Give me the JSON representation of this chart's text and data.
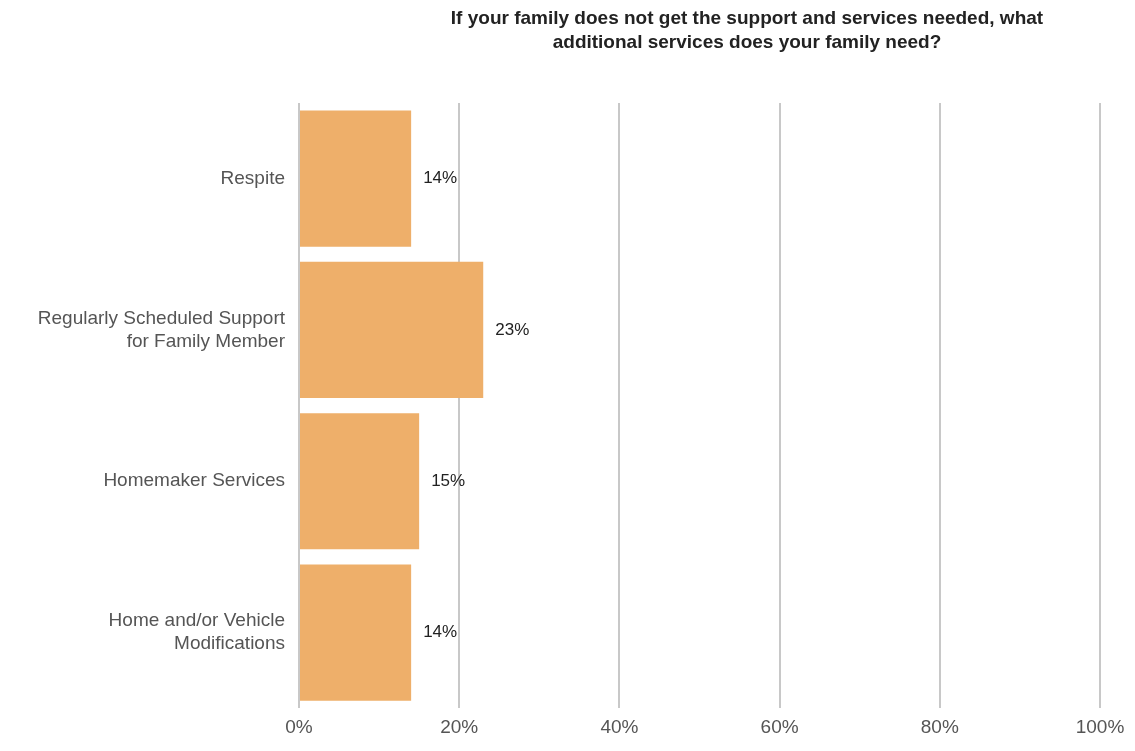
{
  "chart_data": {
    "type": "bar",
    "orientation": "horizontal",
    "title": "If your family does not get the support and services needed, what additional services does your family need?",
    "categories": [
      "Respite",
      "Regularly Scheduled Support for Family Member",
      "Homemaker Services",
      "Home and/or Vehicle Modifications"
    ],
    "values": [
      14,
      23,
      15,
      14
    ],
    "color": "#eeaf6a",
    "value_labels": [
      "14%",
      "23%",
      "15%",
      "14%"
    ],
    "xlim": [
      0,
      100
    ],
    "xticks": [
      {
        "value": 0,
        "label": "0%"
      },
      {
        "value": 20,
        "label": "20%"
      },
      {
        "value": 40,
        "label": "40%"
      },
      {
        "value": 60,
        "label": "60%"
      },
      {
        "value": 80,
        "label": "80%"
      },
      {
        "value": 100,
        "label": "100%"
      }
    ],
    "grid": "x",
    "legend": false
  }
}
